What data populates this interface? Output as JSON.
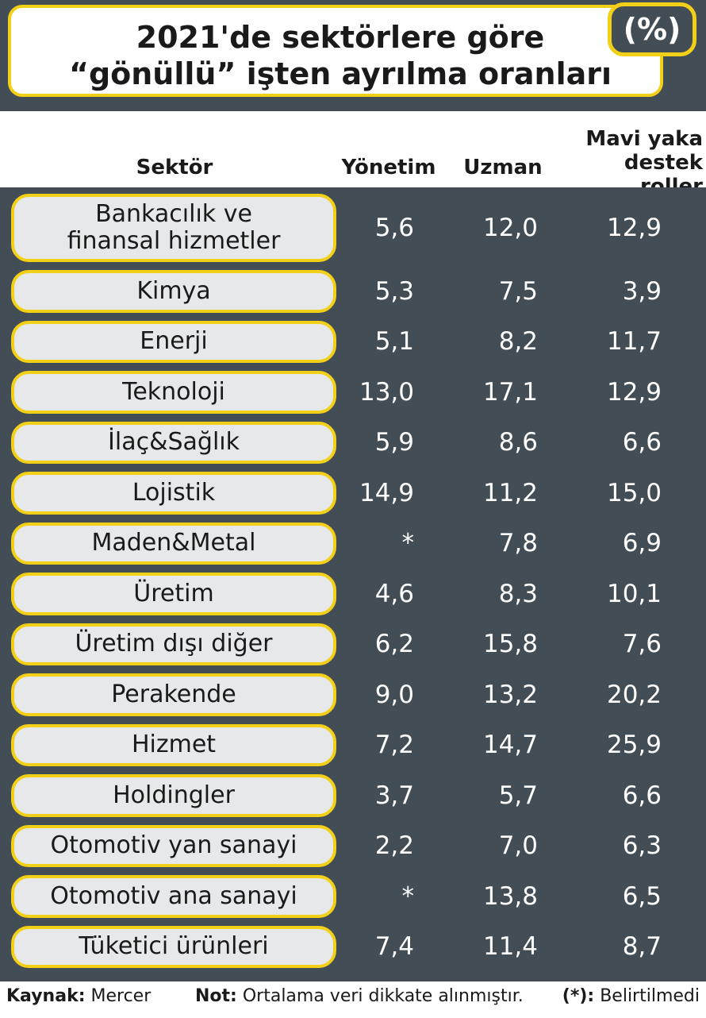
{
  "title": {
    "line1": "2021'de sektörlere göre",
    "line2": "“gönüllü” işten ayrılma oranları",
    "unit_badge": "(%)"
  },
  "colors": {
    "panel": "#424d55",
    "accent": "#f2d018",
    "label_bg": "#e7e8ea",
    "text_light": "#ffffff",
    "text_dark": "#1a1a1a"
  },
  "chart_data": {
    "type": "table",
    "columns": [
      "Sektör",
      "Yönetim",
      "Uzman",
      "Mavi yaka destek roller"
    ],
    "header_lines": {
      "sektor": "Sektör",
      "yonetim": "Yönetim",
      "uzman": "Uzman",
      "mavi_line1": "Mavi yaka",
      "mavi_line2": "destek roller"
    },
    "rows": [
      {
        "sector": "Bankacılık ve finansal hizmetler",
        "yonetim": "5,6",
        "uzman": "12,0",
        "mavi": "12,9"
      },
      {
        "sector": "Kimya",
        "yonetim": "5,3",
        "uzman": "7,5",
        "mavi": "3,9"
      },
      {
        "sector": "Enerji",
        "yonetim": "5,1",
        "uzman": "8,2",
        "mavi": "11,7"
      },
      {
        "sector": "Teknoloji",
        "yonetim": "13,0",
        "uzman": "17,1",
        "mavi": "12,9"
      },
      {
        "sector": "İlaç&Sağlık",
        "yonetim": "5,9",
        "uzman": "8,6",
        "mavi": "6,6"
      },
      {
        "sector": "Lojistik",
        "yonetim": "14,9",
        "uzman": "11,2",
        "mavi": "15,0"
      },
      {
        "sector": "Maden&Metal",
        "yonetim": "*",
        "uzman": "7,8",
        "mavi": "6,9"
      },
      {
        "sector": "Üretim",
        "yonetim": "4,6",
        "uzman": "8,3",
        "mavi": "10,1"
      },
      {
        "sector": "Üretim dışı diğer",
        "yonetim": "6,2",
        "uzman": "15,8",
        "mavi": "7,6"
      },
      {
        "sector": "Perakende",
        "yonetim": "9,0",
        "uzman": "13,2",
        "mavi": "20,2"
      },
      {
        "sector": "Hizmet",
        "yonetim": "7,2",
        "uzman": "14,7",
        "mavi": "25,9"
      },
      {
        "sector": "Holdingler",
        "yonetim": "3,7",
        "uzman": "5,7",
        "mavi": "6,6"
      },
      {
        "sector": "Otomotiv yan sanayi",
        "yonetim": "2,2",
        "uzman": "7,0",
        "mavi": "6,3"
      },
      {
        "sector": "Otomotiv ana sanayi",
        "yonetim": "*",
        "uzman": "13,8",
        "mavi": "6,5"
      },
      {
        "sector": "Tüketici ürünleri",
        "yonetim": "7,4",
        "uzman": "11,4",
        "mavi": "8,7"
      }
    ]
  },
  "footer": {
    "source_label": "Kaynak:",
    "source_value": "Mercer",
    "note_label": "Not:",
    "note_value": "Ortalama veri dikkate alınmıştır.",
    "star_label": "(*):",
    "star_value": "Belirtilmedi"
  }
}
